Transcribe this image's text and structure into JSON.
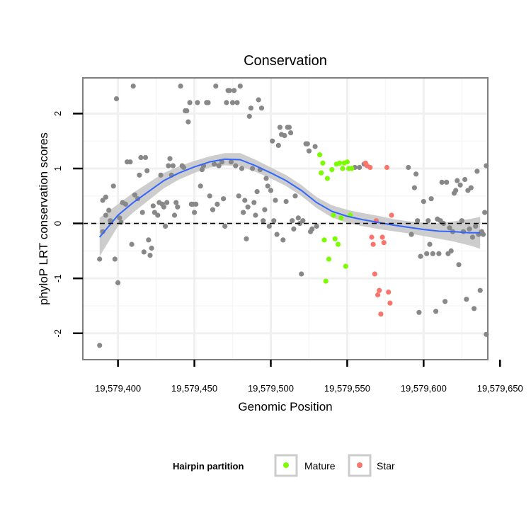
{
  "chart_data": {
    "type": "scatter",
    "title": "Conservation",
    "xlabel": "Genomic Position",
    "ylabel": "phyloP LRT conservation scores",
    "xlim": [
      19579377,
      19579642
    ],
    "ylim": [
      -2.48,
      2.65
    ],
    "xticks": [
      19579400,
      19579450,
      19579500,
      19579550,
      19579600,
      19579650
    ],
    "xtick_labels": [
      "19,579,400",
      "19,579,450",
      "19,579,500",
      "19,579,550",
      "19,579,600",
      "19,579,650"
    ],
    "yticks": [
      -2,
      -1,
      0,
      1,
      2
    ],
    "ytick_labels": [
      "-2",
      "-1",
      "0",
      "1",
      "2"
    ],
    "grid": true,
    "reference_line": {
      "y": 0,
      "style": "dashed"
    },
    "legend": {
      "title": "Hairpin partition",
      "position": "bottom",
      "entries": [
        {
          "label": "Mature",
          "color": "#7cfc00"
        },
        {
          "label": "Star",
          "color": "#f8766d"
        }
      ]
    },
    "colors": {
      "background": "#888888",
      "mature": "#7cfc00",
      "star": "#f8766d",
      "smooth": "#3366ff",
      "ribbon": "#c8c8c8"
    },
    "series": [
      {
        "name": "Background",
        "color": "#888888",
        "points": [
          [
            19579388,
            -0.65
          ],
          [
            19579388,
            -2.22
          ],
          [
            19579390,
            -0.15
          ],
          [
            19579390,
            0.42
          ],
          [
            19579392,
            0.15
          ],
          [
            19579392,
            0.48
          ],
          [
            19579394,
            0.24
          ],
          [
            19579395,
            0.05
          ],
          [
            19579397,
            0.68
          ],
          [
            19579398,
            -0.65
          ],
          [
            19579399,
            2.27
          ],
          [
            19579400,
            -1.08
          ],
          [
            19579401,
            0.1
          ],
          [
            19579402,
            0.02
          ],
          [
            19579403,
            0.38
          ],
          [
            19579405,
            0.35
          ],
          [
            19579406,
            1.12
          ],
          [
            19579408,
            1.12
          ],
          [
            19579409,
            -0.38
          ],
          [
            19579410,
            2.5
          ],
          [
            19579411,
            0.52
          ],
          [
            19579413,
            0.45
          ],
          [
            19579414,
            0.88
          ],
          [
            19579415,
            1.2
          ],
          [
            19579416,
            0.2
          ],
          [
            19579417,
            -0.52
          ],
          [
            19579418,
            1.2
          ],
          [
            19579419,
            0.96
          ],
          [
            19579420,
            -0.3
          ],
          [
            19579421,
            -0.58
          ],
          [
            19579422,
            -0.45
          ],
          [
            19579423,
            0.32
          ],
          [
            19579424,
            0.2
          ],
          [
            19579426,
            0.15
          ],
          [
            19579427,
            0.38
          ],
          [
            19579428,
            0.88
          ],
          [
            19579429,
            0.35
          ],
          [
            19579430,
            0.3
          ],
          [
            19579431,
            -0.05
          ],
          [
            19579432,
            0.38
          ],
          [
            19579433,
            1.05
          ],
          [
            19579434,
            1.18
          ],
          [
            19579435,
            0.88
          ],
          [
            19579436,
            1.05
          ],
          [
            19579437,
            0.15
          ],
          [
            19579438,
            0.38
          ],
          [
            19579439,
            0.3
          ],
          [
            19579441,
            2.5
          ],
          [
            19579442,
            1.05
          ],
          [
            19579443,
            1.02
          ],
          [
            19579444,
            2.05
          ],
          [
            19579445,
            2.05
          ],
          [
            19579446,
            1.85
          ],
          [
            19579447,
            2.2
          ],
          [
            19579448,
            0.35
          ],
          [
            19579449,
            0.35
          ],
          [
            19579450,
            0.2
          ],
          [
            19579451,
            0.35
          ],
          [
            19579452,
            2.2
          ],
          [
            19579454,
            0.68
          ],
          [
            19579455,
            0.98
          ],
          [
            19579456,
            1.05
          ],
          [
            19579458,
            2.2
          ],
          [
            19579459,
            2.2
          ],
          [
            19579460,
            0.5
          ],
          [
            19579462,
            0.25
          ],
          [
            19579463,
            1.08
          ],
          [
            19579464,
            2.5
          ],
          [
            19579465,
            0.35
          ],
          [
            19579466,
            1.05
          ],
          [
            19579468,
            1.12
          ],
          [
            19579469,
            0.45
          ],
          [
            19579470,
            -0.05
          ],
          [
            19579471,
            2.2
          ],
          [
            19579472,
            2.42
          ],
          [
            19579473,
            2.42
          ],
          [
            19579474,
            1.12
          ],
          [
            19579475,
            2.2
          ],
          [
            19579476,
            2.42
          ],
          [
            19579477,
            1.05
          ],
          [
            19579478,
            2.2
          ],
          [
            19579479,
            0.5
          ],
          [
            19579480,
            2.5
          ],
          [
            19579481,
            1.0
          ],
          [
            19579482,
            0.2
          ],
          [
            19579483,
            0.42
          ],
          [
            19579484,
            -0.28
          ],
          [
            19579485,
            0.3
          ],
          [
            19579486,
            1.95
          ],
          [
            19579487,
            2.1
          ],
          [
            19579488,
            1.0
          ],
          [
            19579489,
            0.38
          ],
          [
            19579490,
            0.15
          ],
          [
            19579491,
            0.58
          ],
          [
            19579492,
            2.25
          ],
          [
            19579493,
            0.98
          ],
          [
            19579494,
            2.1
          ],
          [
            19579495,
            0.05
          ],
          [
            19579496,
            0.25
          ],
          [
            19579497,
            0.82
          ],
          [
            19579498,
            0.68
          ],
          [
            19579499,
            -0.05
          ],
          [
            19579500,
            0.6
          ],
          [
            19579501,
            1.5
          ],
          [
            19579502,
            0.05
          ],
          [
            19579503,
            0.42
          ],
          [
            19579504,
            -0.2
          ],
          [
            19579505,
            1.42
          ],
          [
            19579506,
            1.75
          ],
          [
            19579507,
            1.62
          ],
          [
            19579508,
            -0.3
          ],
          [
            19579509,
            1.6
          ],
          [
            19579510,
            0.4
          ],
          [
            19579511,
            1.75
          ],
          [
            19579512,
            1.75
          ],
          [
            19579513,
            1.65
          ],
          [
            19579514,
            0.05
          ],
          [
            19579515,
            -0.1
          ],
          [
            19579516,
            0.5
          ],
          [
            19579518,
            0.1
          ],
          [
            19579519,
            0.0
          ],
          [
            19579520,
            -0.92
          ],
          [
            19579521,
            0.05
          ],
          [
            19579523,
            1.45
          ],
          [
            19579524,
            1.45
          ],
          [
            19579525,
            1.32
          ],
          [
            19579526,
            -0.15
          ],
          [
            19579527,
            -0.1
          ],
          [
            19579529,
            1.4
          ],
          [
            19579530,
            -0.05
          ],
          [
            19579555,
            1.02
          ],
          [
            19579558,
            1.02
          ],
          [
            19579561,
            1.08
          ],
          [
            19579590,
            1.02
          ],
          [
            19579592,
            -0.2
          ],
          [
            19579594,
            0.65
          ],
          [
            19579595,
            0.9
          ],
          [
            19579596,
            0.05
          ],
          [
            19579597,
            -1.62
          ],
          [
            19579598,
            -0.6
          ],
          [
            19579600,
            0.4
          ],
          [
            19579602,
            -0.55
          ],
          [
            19579603,
            0.05
          ],
          [
            19579604,
            -0.38
          ],
          [
            19579605,
            0.45
          ],
          [
            19579606,
            -0.55
          ],
          [
            19579608,
            -1.6
          ],
          [
            19579609,
            0.08
          ],
          [
            19579610,
            -0.55
          ],
          [
            19579611,
            0.05
          ],
          [
            19579612,
            0.75
          ],
          [
            19579613,
            0.0
          ],
          [
            19579614,
            -1.42
          ],
          [
            19579615,
            0.75
          ],
          [
            19579616,
            -0.55
          ],
          [
            19579617,
            -0.08
          ],
          [
            19579618,
            -0.5
          ],
          [
            19579619,
            -0.15
          ],
          [
            19579620,
            0.55
          ],
          [
            19579621,
            0.6
          ],
          [
            19579622,
            0.78
          ],
          [
            19579623,
            -0.75
          ],
          [
            19579624,
            0.7
          ],
          [
            19579625,
            0.05
          ],
          [
            19579626,
            -0.15
          ],
          [
            19579627,
            0.8
          ],
          [
            19579628,
            -1.38
          ],
          [
            19579629,
            0.6
          ],
          [
            19579630,
            -0.1
          ],
          [
            19579631,
            0.65
          ],
          [
            19579632,
            -0.25
          ],
          [
            19579633,
            -1.55
          ],
          [
            19579634,
            -0.05
          ],
          [
            19579635,
            0.95
          ],
          [
            19579636,
            -0.2
          ],
          [
            19579637,
            -1.22
          ],
          [
            19579638,
            -0.15
          ],
          [
            19579639,
            -0.2
          ],
          [
            19579640,
            0.2
          ],
          [
            19579641,
            -2.02
          ],
          [
            19579641,
            1.05
          ]
        ]
      },
      {
        "name": "Mature",
        "color": "#7cfc00",
        "points": [
          [
            19579532,
            1.25
          ],
          [
            19579533,
            0.92
          ],
          [
            19579534,
            1.1
          ],
          [
            19579535,
            -0.3
          ],
          [
            19579536,
            -1.05
          ],
          [
            19579537,
            0.82
          ],
          [
            19579538,
            -0.65
          ],
          [
            19579540,
            0.98
          ],
          [
            19579541,
            0.15
          ],
          [
            19579542,
            -0.28
          ],
          [
            19579543,
            1.08
          ],
          [
            19579544,
            -0.38
          ],
          [
            19579545,
            1.1
          ],
          [
            19579546,
            0.1
          ],
          [
            19579547,
            1.0
          ],
          [
            19579548,
            1.1
          ],
          [
            19579549,
            -0.78
          ],
          [
            19579550,
            1.12
          ],
          [
            19579551,
            1.0
          ],
          [
            19579552,
            0.15
          ],
          [
            19579553,
            1.0
          ]
        ]
      },
      {
        "name": "Star",
        "color": "#f8766d",
        "points": [
          [
            19579562,
            1.1
          ],
          [
            19579563,
            1.05
          ],
          [
            19579565,
            1.02
          ],
          [
            19579566,
            -0.25
          ],
          [
            19579567,
            -0.38
          ],
          [
            19579568,
            -0.92
          ],
          [
            19579569,
            0.05
          ],
          [
            19579570,
            -1.3
          ],
          [
            19579571,
            -1.22
          ],
          [
            19579572,
            -1.65
          ],
          [
            19579573,
            -0.25
          ],
          [
            19579574,
            -0.35
          ],
          [
            19579576,
            1.02
          ],
          [
            19579577,
            -1.25
          ],
          [
            19579578,
            -1.45
          ],
          [
            19579579,
            0.15
          ]
        ]
      }
    ],
    "smooth_fit": {
      "color": "#3366ff",
      "x": [
        19579388,
        19579400,
        19579410,
        19579420,
        19579430,
        19579440,
        19579450,
        19579460,
        19579470,
        19579480,
        19579490,
        19579500,
        19579510,
        19579520,
        19579530,
        19579540,
        19579550,
        19579560,
        19579570,
        19579580,
        19579590,
        19579600,
        19579610,
        19579620,
        19579630,
        19579637
      ],
      "y": [
        -0.25,
        0.15,
        0.38,
        0.58,
        0.78,
        0.92,
        1.03,
        1.12,
        1.17,
        1.16,
        1.05,
        0.92,
        0.78,
        0.6,
        0.38,
        0.22,
        0.13,
        0.07,
        0.02,
        -0.03,
        -0.07,
        -0.11,
        -0.14,
        -0.15,
        -0.17,
        -0.17
      ],
      "lower": [
        -0.6,
        -0.05,
        0.2,
        0.42,
        0.64,
        0.8,
        0.92,
        1.02,
        1.06,
        1.04,
        0.94,
        0.82,
        0.68,
        0.5,
        0.28,
        0.11,
        0.01,
        -0.05,
        -0.1,
        -0.14,
        -0.18,
        -0.23,
        -0.28,
        -0.33,
        -0.4,
        -0.46
      ],
      "upper": [
        0.1,
        0.35,
        0.56,
        0.74,
        0.92,
        1.04,
        1.14,
        1.22,
        1.28,
        1.28,
        1.16,
        1.02,
        0.88,
        0.7,
        0.48,
        0.33,
        0.25,
        0.19,
        0.14,
        0.08,
        0.04,
        0.01,
        0.0,
        0.04,
        0.08,
        0.12
      ]
    }
  }
}
